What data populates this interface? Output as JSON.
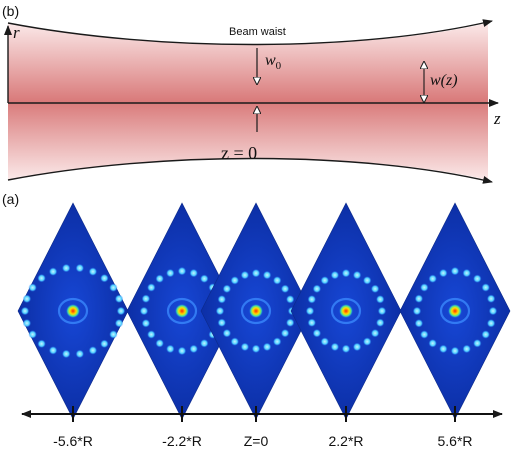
{
  "panel_b": {
    "label": "(b)",
    "axis_r": "r",
    "axis_z": "z",
    "beam_waist_label": "Beam waist",
    "w0_symbol": "w",
    "w0_subscript": "0",
    "wz_label": "w(z)",
    "z0_label": "z = 0",
    "colors": {
      "beam_core": "#d97a7a",
      "beam_edge": "#fbe9e9",
      "outline": "#1a1a1a"
    }
  },
  "panel_a": {
    "label": "(a)",
    "positions": [
      "-5.6*R",
      "-2.2*R",
      "Z=0",
      "2.2*R",
      "5.6*R"
    ],
    "colors": {
      "field_bg": "#0a2fa8",
      "ring": "#4fd0ff",
      "core": "#e01010",
      "axis": "#111111"
    }
  }
}
